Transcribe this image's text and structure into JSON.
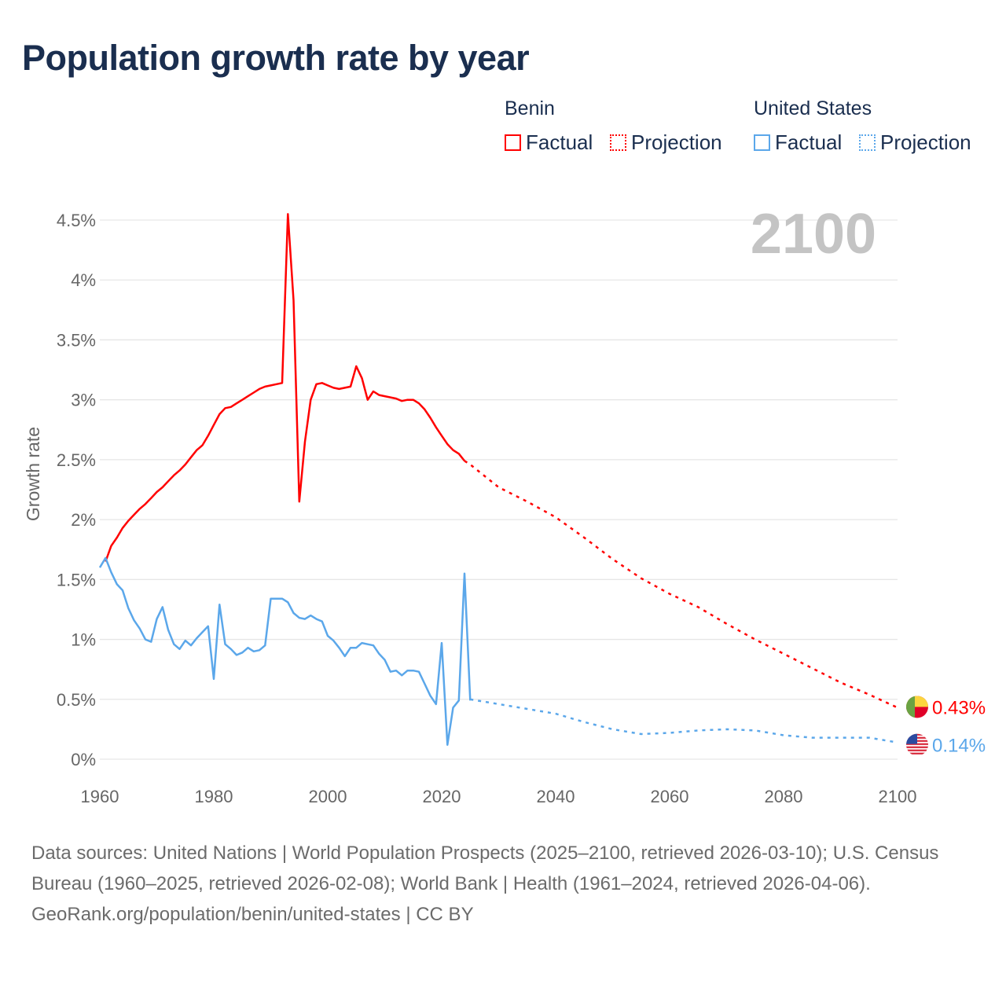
{
  "title": "Population growth rate by year",
  "legend": {
    "groups": [
      {
        "name": "Benin",
        "color": "#ff0000",
        "factual_label": "Factual",
        "projection_label": "Projection"
      },
      {
        "name": "United States",
        "color": "#5ba7ea",
        "factual_label": "Factual",
        "projection_label": "Projection"
      }
    ]
  },
  "chart_data": {
    "type": "line",
    "title": "Population growth rate by year",
    "ylabel": "Growth rate",
    "xlabel": "",
    "xlim": [
      1960,
      2100
    ],
    "ylim": [
      0,
      4.5
    ],
    "x_ticks": [
      "1960",
      "1980",
      "2000",
      "2020",
      "2040",
      "2060",
      "2080",
      "2100"
    ],
    "y_ticks": [
      "0%",
      "0.5%",
      "1%",
      "1.5%",
      "2%",
      "2.5%",
      "3%",
      "3.5%",
      "4%",
      "4.5%"
    ],
    "grid": true,
    "current_year_label": "2100",
    "series": [
      {
        "name": "Benin",
        "color": "#ff0000",
        "end_label": "0.43%",
        "factual": {
          "x": [
            1961,
            1962,
            1963,
            1964,
            1965,
            1966,
            1967,
            1968,
            1969,
            1970,
            1971,
            1972,
            1973,
            1974,
            1975,
            1976,
            1977,
            1978,
            1979,
            1980,
            1981,
            1982,
            1983,
            1984,
            1985,
            1986,
            1987,
            1988,
            1989,
            1990,
            1991,
            1992,
            1993,
            1994,
            1995,
            1996,
            1997,
            1998,
            1999,
            2000,
            2001,
            2002,
            2003,
            2004,
            2005,
            2006,
            2007,
            2008,
            2009,
            2010,
            2011,
            2012,
            2013,
            2014,
            2015,
            2016,
            2017,
            2018,
            2019,
            2020,
            2021,
            2022,
            2023,
            2024
          ],
          "y": [
            1.65,
            1.78,
            1.85,
            1.93,
            1.99,
            2.04,
            2.09,
            2.13,
            2.18,
            2.23,
            2.27,
            2.32,
            2.37,
            2.41,
            2.46,
            2.52,
            2.58,
            2.62,
            2.7,
            2.79,
            2.88,
            2.93,
            2.94,
            2.97,
            3.0,
            3.03,
            3.06,
            3.09,
            3.11,
            3.12,
            3.13,
            3.14,
            4.55,
            3.83,
            2.15,
            2.65,
            3.0,
            3.13,
            3.14,
            3.12,
            3.1,
            3.09,
            3.1,
            3.11,
            3.28,
            3.18,
            3.0,
            3.07,
            3.04,
            3.03,
            3.02,
            3.01,
            2.99,
            3.0,
            3.0,
            2.97,
            2.92,
            2.85,
            2.77,
            2.7,
            2.63,
            2.58,
            2.55,
            2.49
          ]
        },
        "projection": {
          "x": [
            2024,
            2025,
            2030,
            2035,
            2040,
            2045,
            2050,
            2055,
            2060,
            2065,
            2070,
            2075,
            2080,
            2085,
            2090,
            2095,
            2100
          ],
          "y": [
            2.49,
            2.46,
            2.27,
            2.15,
            2.02,
            1.85,
            1.67,
            1.51,
            1.38,
            1.27,
            1.13,
            1.0,
            0.88,
            0.76,
            0.64,
            0.54,
            0.43
          ]
        }
      },
      {
        "name": "United States",
        "color": "#5ba7ea",
        "end_label": "0.14%",
        "factual": {
          "x": [
            1960,
            1961,
            1962,
            1963,
            1964,
            1965,
            1966,
            1967,
            1968,
            1969,
            1970,
            1971,
            1972,
            1973,
            1974,
            1975,
            1976,
            1977,
            1978,
            1979,
            1980,
            1981,
            1982,
            1983,
            1984,
            1985,
            1986,
            1987,
            1988,
            1989,
            1990,
            1991,
            1992,
            1993,
            1994,
            1995,
            1996,
            1997,
            1998,
            1999,
            2000,
            2001,
            2002,
            2003,
            2004,
            2005,
            2006,
            2007,
            2008,
            2009,
            2010,
            2011,
            2012,
            2013,
            2014,
            2015,
            2016,
            2017,
            2018,
            2019,
            2020,
            2021,
            2022,
            2023,
            2024,
            2025
          ],
          "y": [
            1.6,
            1.68,
            1.56,
            1.46,
            1.41,
            1.26,
            1.16,
            1.09,
            1.0,
            0.98,
            1.17,
            1.27,
            1.08,
            0.96,
            0.92,
            0.99,
            0.95,
            1.01,
            1.06,
            1.11,
            0.67,
            1.29,
            0.96,
            0.92,
            0.87,
            0.89,
            0.93,
            0.9,
            0.91,
            0.95,
            1.34,
            1.34,
            1.34,
            1.31,
            1.22,
            1.18,
            1.17,
            1.2,
            1.17,
            1.15,
            1.03,
            0.99,
            0.93,
            0.86,
            0.93,
            0.93,
            0.97,
            0.96,
            0.95,
            0.88,
            0.83,
            0.73,
            0.74,
            0.7,
            0.74,
            0.74,
            0.73,
            0.63,
            0.53,
            0.46,
            0.97,
            0.12,
            0.43,
            0.49,
            1.55,
            0.49
          ]
        },
        "projection": {
          "x": [
            2025,
            2030,
            2035,
            2040,
            2045,
            2050,
            2055,
            2060,
            2065,
            2070,
            2075,
            2080,
            2085,
            2090,
            2095,
            2100
          ],
          "y": [
            0.5,
            0.46,
            0.42,
            0.38,
            0.31,
            0.25,
            0.21,
            0.22,
            0.24,
            0.25,
            0.24,
            0.2,
            0.18,
            0.18,
            0.18,
            0.14
          ]
        }
      }
    ]
  },
  "footer": {
    "sources": "Data sources: United Nations | World Population Prospects (2025–2100, retrieved 2026-03-10); U.S. Census Bureau (1960–2025, retrieved 2026-02-08); World Bank | Health (1961–2024, retrieved 2026-04-06).",
    "credit": "GeoRank.org/population/benin/united-states | CC BY"
  }
}
